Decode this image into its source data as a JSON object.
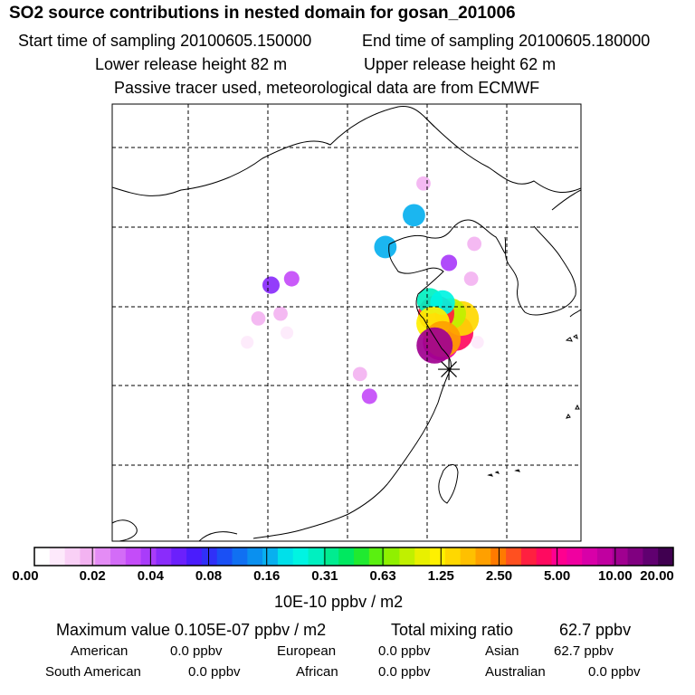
{
  "header": {
    "title": "SO2 source contributions in nested domain for gosan_201006",
    "start_label": "Start time of sampling 20100605.150000",
    "end_label": "End time of sampling 20100605.180000",
    "lower_label": "Lower release height   82 m",
    "upper_label": "Upper release height   62 m",
    "tracer_label": "Passive tracer used, meteorological data are from ECMWF"
  },
  "chart_data": {
    "type": "heatmap",
    "title": "SO2 source contributions in nested domain for gosan_201006",
    "colorbar_unit": "10E-10 ppbv / m2",
    "colorbar_ticks": [
      "0.00",
      "0.02",
      "0.04",
      "0.08",
      "0.16",
      "0.31",
      "0.63",
      "1.25",
      "2.50",
      "5.00",
      "10.00",
      "20.00"
    ],
    "colorbar_colors": [
      "#ffffff",
      "#fde9fb",
      "#f9d0f6",
      "#f3b3f1",
      "#e48cf5",
      "#d36cf7",
      "#c44cf9",
      "#a93cfa",
      "#8a2cfb",
      "#6b20fc",
      "#4a1cfc",
      "#3030f8",
      "#1a50f5",
      "#1070f2",
      "#0a90ef",
      "#08b0ef",
      "#00e0ea",
      "#00f4e2",
      "#00f0c0",
      "#00ec90",
      "#00e860",
      "#20ea30",
      "#5af010",
      "#90f000",
      "#c0f000",
      "#e8f000",
      "#fff000",
      "#ffd800",
      "#ffc000",
      "#ffa000",
      "#ff7a00",
      "#ff5020",
      "#ff2040",
      "#ff0a60",
      "#ff0090",
      "#f000a0",
      "#d800a8",
      "#c000a0",
      "#a00090",
      "#800080",
      "#600070",
      "#400050"
    ],
    "grid": "dashed",
    "receptor_marker": "asterisk",
    "plumes": [
      {
        "lon": 125.7,
        "lat": 35.0,
        "level": 6.0
      },
      {
        "lon": 126.6,
        "lat": 35.6,
        "level": 4.5
      },
      {
        "lon": 127.0,
        "lat": 36.5,
        "level": 1.5
      },
      {
        "lon": 126.3,
        "lat": 36.8,
        "level": 0.8
      },
      {
        "lon": 125.4,
        "lat": 36.8,
        "level": 3.5
      },
      {
        "lon": 125.0,
        "lat": 37.6,
        "level": 0.3
      },
      {
        "lon": 125.8,
        "lat": 37.5,
        "level": 0.25
      },
      {
        "lon": 125.2,
        "lat": 36.2,
        "level": 1.2
      },
      {
        "lon": 125.8,
        "lat": 35.2,
        "level": 2.2
      },
      {
        "lon": 125.3,
        "lat": 34.8,
        "level": 10.0
      },
      {
        "lon": 122.2,
        "lat": 41.0,
        "level": 0.16
      },
      {
        "lon": 124.0,
        "lat": 43.0,
        "level": 0.16
      },
      {
        "lon": 124.6,
        "lat": 45.0,
        "level": 0.02
      },
      {
        "lon": 115.0,
        "lat": 38.6,
        "level": 0.05
      },
      {
        "lon": 116.3,
        "lat": 39.0,
        "level": 0.03
      },
      {
        "lon": 114.2,
        "lat": 36.5,
        "level": 0.02
      },
      {
        "lon": 115.6,
        "lat": 36.8,
        "level": 0.02
      },
      {
        "lon": 116.0,
        "lat": 35.6,
        "level": 0.01
      },
      {
        "lon": 113.5,
        "lat": 35.0,
        "level": 0.01
      },
      {
        "lon": 120.6,
        "lat": 33.0,
        "level": 0.02
      },
      {
        "lon": 121.2,
        "lat": 31.6,
        "level": 0.03
      },
      {
        "lon": 126.2,
        "lat": 40.0,
        "level": 0.04
      },
      {
        "lon": 127.8,
        "lat": 41.2,
        "level": 0.02
      },
      {
        "lon": 127.6,
        "lat": 39.0,
        "level": 0.02
      },
      {
        "lon": 128.0,
        "lat": 35.0,
        "level": 0.01
      }
    ],
    "receptor": {
      "lon": 126.2,
      "lat": 33.3,
      "name": "gosan"
    }
  },
  "stats": {
    "max_label": "Maximum value  0.105E-07 ppbv / m2",
    "total_label": "Total mixing ratio",
    "total_value": "62.7 ppbv",
    "american_label": "American",
    "american_value": "0.0 ppbv",
    "european_label": "European",
    "european_value": "0.0 ppbv",
    "asian_label": "Asian",
    "asian_value": "62.7 ppbv",
    "south_american_label": "South American",
    "south_american_value": "0.0 ppbv",
    "african_label": "African",
    "african_value": "0.0 ppbv",
    "australian_label": "Australian",
    "australian_value": "0.0 ppbv"
  }
}
